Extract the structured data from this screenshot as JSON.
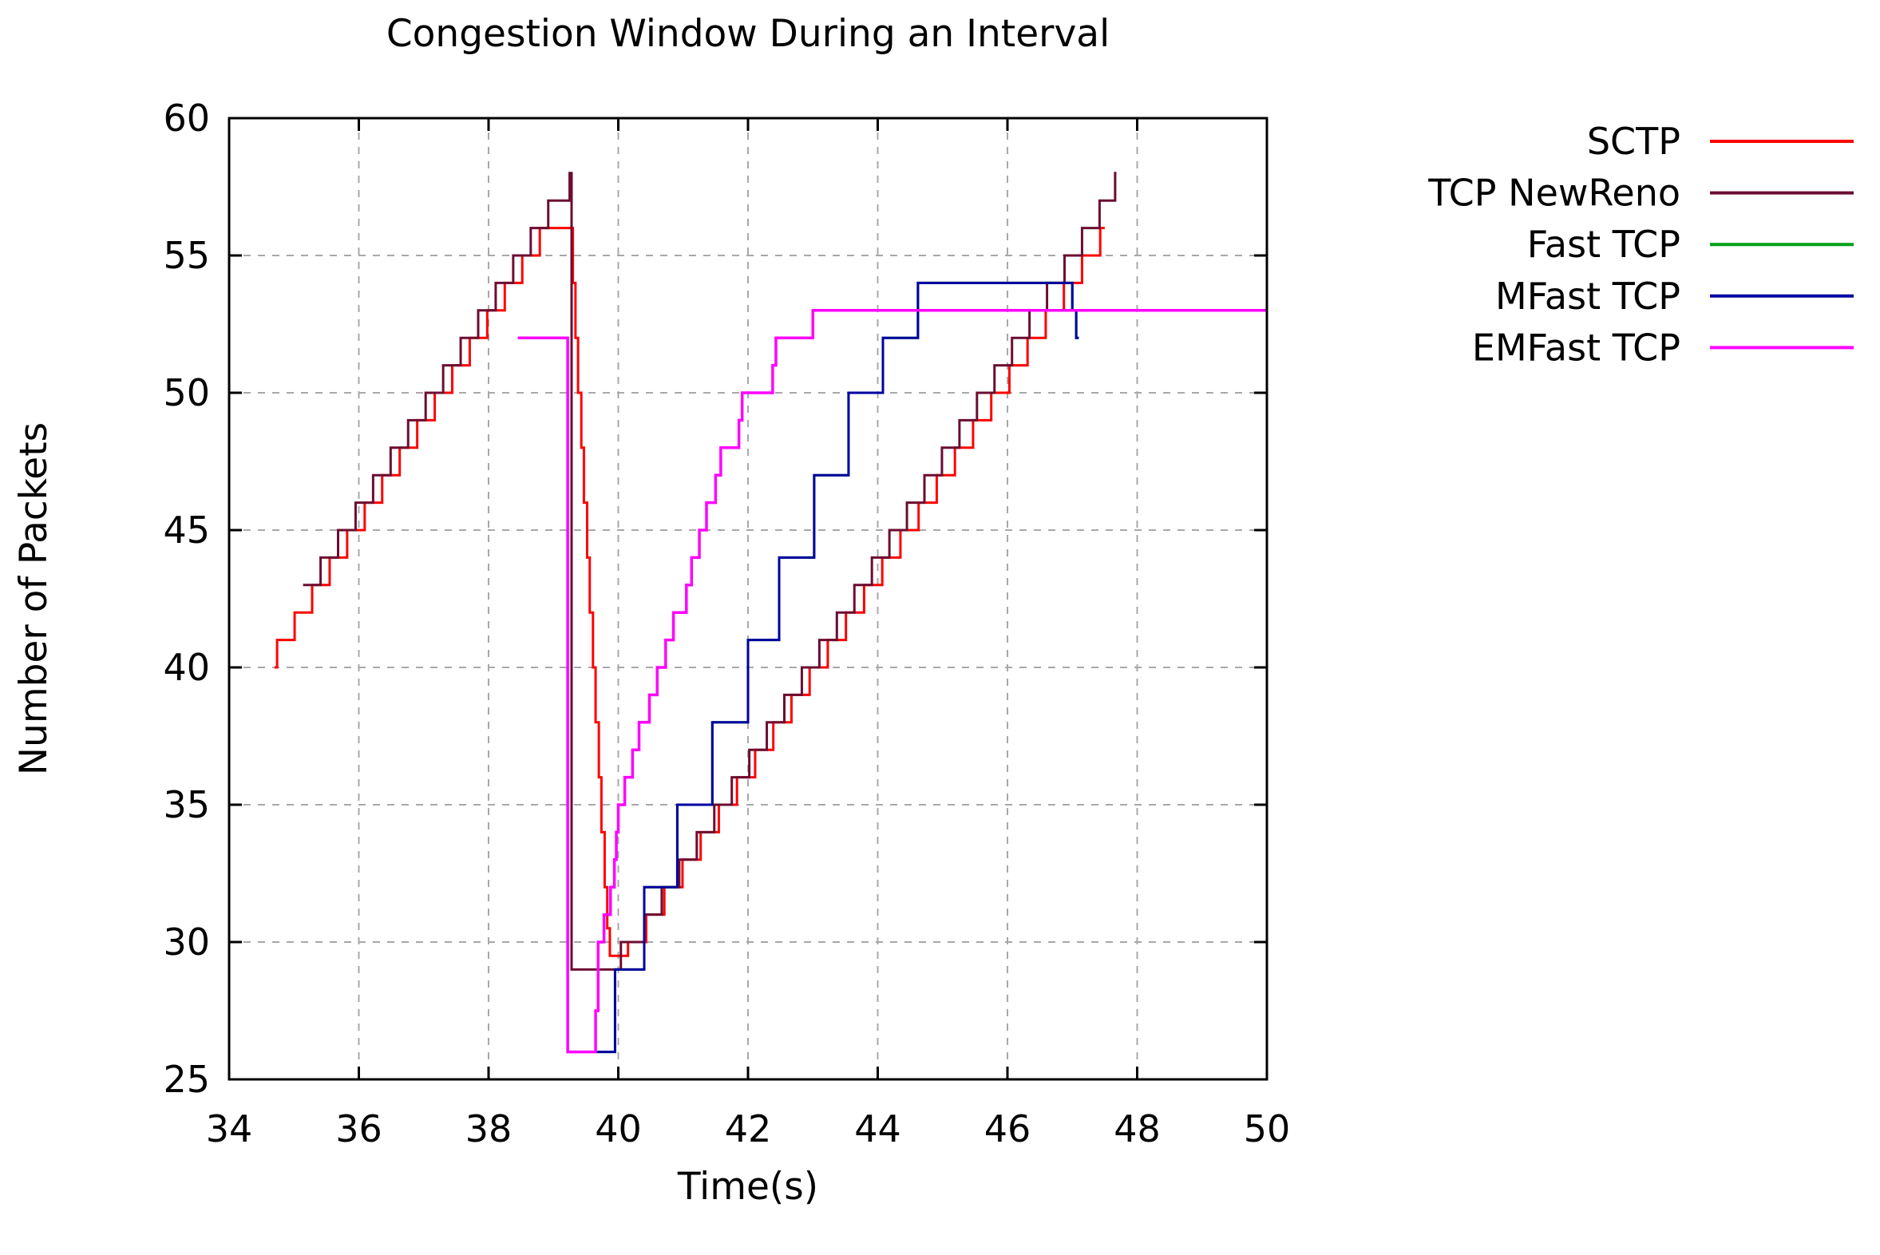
{
  "chart_data": {
    "type": "line",
    "title": "Congestion Window During an Interval",
    "xlabel": "Time(s)",
    "ylabel": "Number of Packets",
    "xlim": [
      34,
      50
    ],
    "ylim": [
      25,
      60
    ],
    "xticks": [
      34,
      36,
      38,
      40,
      42,
      44,
      46,
      48,
      50
    ],
    "yticks": [
      25,
      30,
      35,
      40,
      45,
      50,
      55,
      60
    ],
    "grid": true,
    "grid_color": "#a8a8a8",
    "legend_position": "outside-right-top",
    "series": [
      {
        "name": "SCTP",
        "color": "#ff0000",
        "width": 3,
        "mode": "steps",
        "points": [
          [
            34.7,
            40
          ],
          [
            34.74,
            41
          ],
          [
            35.01,
            42
          ],
          [
            35.28,
            43
          ],
          [
            35.55,
            44
          ],
          [
            35.82,
            45
          ],
          [
            36.09,
            46
          ],
          [
            36.36,
            47
          ],
          [
            36.63,
            48
          ],
          [
            36.9,
            49
          ],
          [
            37.17,
            50
          ],
          [
            37.44,
            51
          ],
          [
            37.71,
            52
          ],
          [
            37.98,
            53
          ],
          [
            38.25,
            54
          ],
          [
            38.52,
            55
          ],
          [
            38.79,
            56
          ],
          [
            39.3,
            54
          ],
          [
            39.34,
            52
          ],
          [
            39.38,
            50
          ],
          [
            39.43,
            48
          ],
          [
            39.47,
            46
          ],
          [
            39.52,
            44
          ],
          [
            39.56,
            42
          ],
          [
            39.61,
            40
          ],
          [
            39.65,
            38
          ],
          [
            39.7,
            36
          ],
          [
            39.74,
            34
          ],
          [
            39.79,
            32
          ],
          [
            39.83,
            30.5
          ],
          [
            39.87,
            29.5
          ],
          [
            40.15,
            30
          ],
          [
            40.43,
            31
          ],
          [
            40.71,
            32
          ],
          [
            40.99,
            33
          ],
          [
            41.27,
            34
          ],
          [
            41.55,
            35
          ],
          [
            41.83,
            36
          ],
          [
            42.11,
            37
          ],
          [
            42.39,
            38
          ],
          [
            42.67,
            39
          ],
          [
            42.95,
            40
          ],
          [
            43.23,
            41
          ],
          [
            43.51,
            42
          ],
          [
            43.79,
            43
          ],
          [
            44.07,
            44
          ],
          [
            44.35,
            45
          ],
          [
            44.63,
            46
          ],
          [
            44.91,
            47
          ],
          [
            45.19,
            48
          ],
          [
            45.47,
            49
          ],
          [
            45.75,
            50
          ],
          [
            46.03,
            51
          ],
          [
            46.31,
            52
          ],
          [
            46.59,
            53
          ],
          [
            46.87,
            54
          ],
          [
            47.15,
            55
          ],
          [
            47.43,
            56
          ],
          [
            47.5,
            56
          ]
        ]
      },
      {
        "name": "TCP NewReno",
        "color": "#6b0d32",
        "width": 3,
        "mode": "steps",
        "points": [
          [
            35.14,
            43
          ],
          [
            35.41,
            44
          ],
          [
            35.68,
            45
          ],
          [
            35.95,
            46
          ],
          [
            36.22,
            47
          ],
          [
            36.49,
            48
          ],
          [
            36.76,
            49
          ],
          [
            37.03,
            50
          ],
          [
            37.3,
            51
          ],
          [
            37.57,
            52
          ],
          [
            37.84,
            53
          ],
          [
            38.11,
            54
          ],
          [
            38.38,
            55
          ],
          [
            38.65,
            56
          ],
          [
            38.92,
            57
          ],
          [
            39.25,
            58
          ],
          [
            39.28,
            29
          ],
          [
            40.04,
            30
          ],
          [
            40.4,
            31
          ],
          [
            40.67,
            32
          ],
          [
            40.94,
            33
          ],
          [
            41.21,
            34
          ],
          [
            41.48,
            35
          ],
          [
            41.75,
            36
          ],
          [
            42.02,
            37
          ],
          [
            42.29,
            38
          ],
          [
            42.56,
            39
          ],
          [
            42.83,
            40
          ],
          [
            43.1,
            41
          ],
          [
            43.37,
            42
          ],
          [
            43.64,
            43
          ],
          [
            43.91,
            44
          ],
          [
            44.18,
            45
          ],
          [
            44.45,
            46
          ],
          [
            44.72,
            47
          ],
          [
            44.99,
            48
          ],
          [
            45.26,
            49
          ],
          [
            45.53,
            50
          ],
          [
            45.8,
            51
          ],
          [
            46.07,
            52
          ],
          [
            46.34,
            53
          ],
          [
            46.61,
            54
          ],
          [
            46.88,
            55
          ],
          [
            47.15,
            56
          ],
          [
            47.42,
            57
          ],
          [
            47.66,
            58
          ],
          [
            47.68,
            58
          ]
        ]
      },
      {
        "name": "Fast TCP",
        "color": "#00a018",
        "width": 3,
        "mode": "steps",
        "note": "coincides with MFast TCP and is hidden beneath it",
        "points": [
          [
            39.65,
            26
          ],
          [
            39.95,
            29
          ],
          [
            40.4,
            32
          ],
          [
            40.91,
            35
          ],
          [
            41.45,
            38
          ],
          [
            42.0,
            41
          ],
          [
            42.48,
            44
          ],
          [
            43.02,
            47
          ],
          [
            43.55,
            50
          ],
          [
            44.08,
            52
          ],
          [
            44.62,
            54
          ],
          [
            47.0,
            53
          ],
          [
            47.06,
            52
          ],
          [
            47.1,
            52
          ]
        ]
      },
      {
        "name": "MFast TCP",
        "color": "#0000a0",
        "width": 3,
        "mode": "steps",
        "points": [
          [
            39.65,
            26
          ],
          [
            39.95,
            29
          ],
          [
            40.4,
            32
          ],
          [
            40.91,
            35
          ],
          [
            41.45,
            38
          ],
          [
            42.0,
            41
          ],
          [
            42.48,
            44
          ],
          [
            43.02,
            47
          ],
          [
            43.55,
            50
          ],
          [
            44.08,
            52
          ],
          [
            44.62,
            54
          ],
          [
            47.0,
            53
          ],
          [
            47.06,
            52
          ],
          [
            47.1,
            52
          ]
        ]
      },
      {
        "name": "EMFast TCP",
        "color": "#ff00ff",
        "width": 3.5,
        "mode": "steps",
        "points": [
          [
            38.45,
            52
          ],
          [
            39.22,
            26
          ],
          [
            39.65,
            27.5
          ],
          [
            39.69,
            30
          ],
          [
            39.78,
            31
          ],
          [
            39.88,
            32
          ],
          [
            39.94,
            33
          ],
          [
            39.97,
            34
          ],
          [
            40.0,
            35
          ],
          [
            40.1,
            36
          ],
          [
            40.22,
            37
          ],
          [
            40.32,
            38
          ],
          [
            40.48,
            39
          ],
          [
            40.6,
            40
          ],
          [
            40.73,
            41
          ],
          [
            40.85,
            42
          ],
          [
            41.05,
            43
          ],
          [
            41.13,
            44
          ],
          [
            41.25,
            45
          ],
          [
            41.36,
            46
          ],
          [
            41.5,
            47
          ],
          [
            41.58,
            48
          ],
          [
            41.86,
            49
          ],
          [
            41.91,
            50
          ],
          [
            42.38,
            51
          ],
          [
            42.43,
            52
          ],
          [
            43.0,
            53
          ],
          [
            50.0,
            53
          ]
        ]
      }
    ]
  }
}
